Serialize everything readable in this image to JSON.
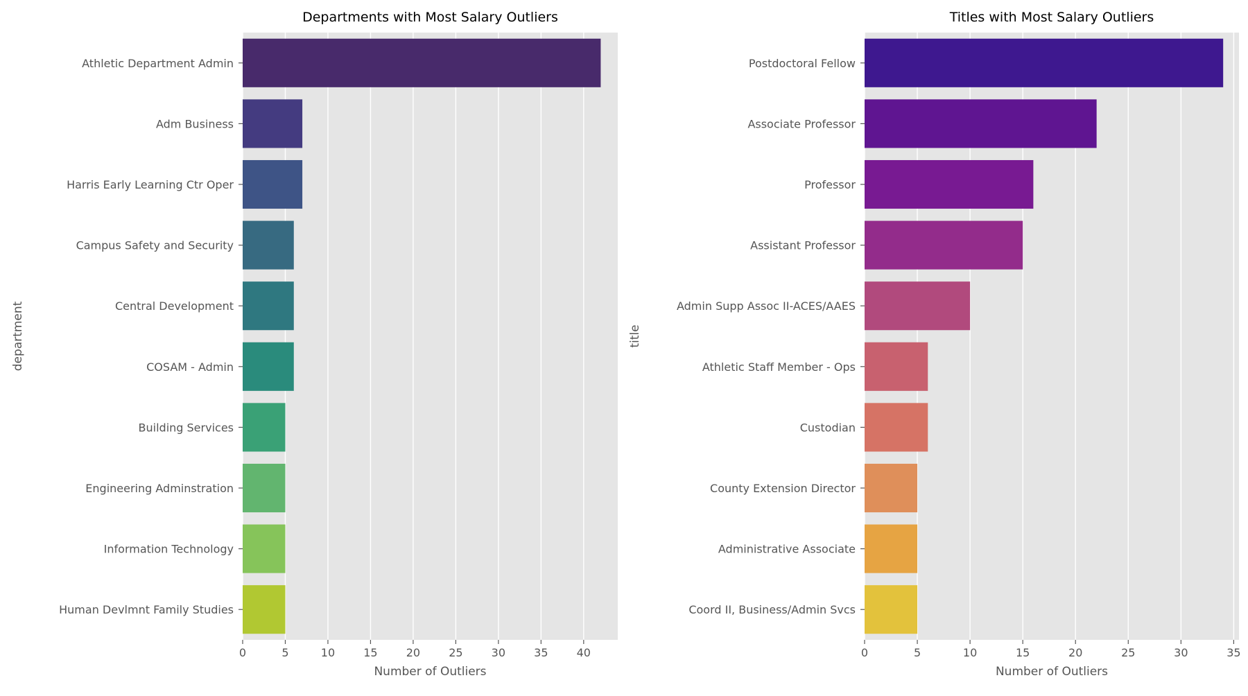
{
  "chart_data": [
    {
      "type": "bar",
      "orientation": "horizontal",
      "title": "Departments with Most Salary Outliers",
      "xlabel": "Number of Outliers",
      "ylabel": "department",
      "xlim": [
        0,
        44
      ],
      "xticks": [
        0,
        5,
        10,
        15,
        20,
        25,
        30,
        35,
        40
      ],
      "grid": true,
      "palette": "viridis",
      "categories": [
        "Athletic Department Admin",
        "Adm Business",
        "Harris Early Learning Ctr Oper",
        "Campus Safety and Security",
        "Central Development",
        "COSAM - Admin",
        "Building Services",
        "Engineering Adminstration",
        "Information Technology",
        "Human Devlmnt Family Studies"
      ],
      "values": [
        42,
        7,
        7,
        6,
        6,
        6,
        5,
        5,
        5,
        5
      ],
      "colors": [
        "#482a6b",
        "#443b80",
        "#3e5486",
        "#376a81",
        "#2f7880",
        "#2a8b7c",
        "#3aa176",
        "#62b56f",
        "#86c45a",
        "#b1c832"
      ]
    },
    {
      "type": "bar",
      "orientation": "horizontal",
      "title": "Titles with Most Salary Outliers",
      "xlabel": "Number of Outliers",
      "ylabel": "title",
      "xlim": [
        0,
        35.5
      ],
      "xticks": [
        0,
        5,
        10,
        15,
        20,
        25,
        30,
        35
      ],
      "grid": true,
      "palette": "plasma",
      "categories": [
        "Postdoctoral Fellow",
        "Associate Professor",
        "Professor",
        "Assistant Professor",
        "Admin Supp Assoc II-ACES/AAES",
        "Athletic Staff Member - Ops",
        "Custodian",
        "County Extension Director",
        "Administrative Associate",
        "Coord II, Business/Admin Svcs"
      ],
      "values": [
        34,
        22,
        16,
        15,
        10,
        6,
        6,
        5,
        5,
        5
      ],
      "colors": [
        "#3e188f",
        "#5f1591",
        "#781a92",
        "#932c8b",
        "#b14a7d",
        "#c8616f",
        "#d67365",
        "#df8f5a",
        "#e6a443",
        "#e3c23c"
      ]
    }
  ]
}
